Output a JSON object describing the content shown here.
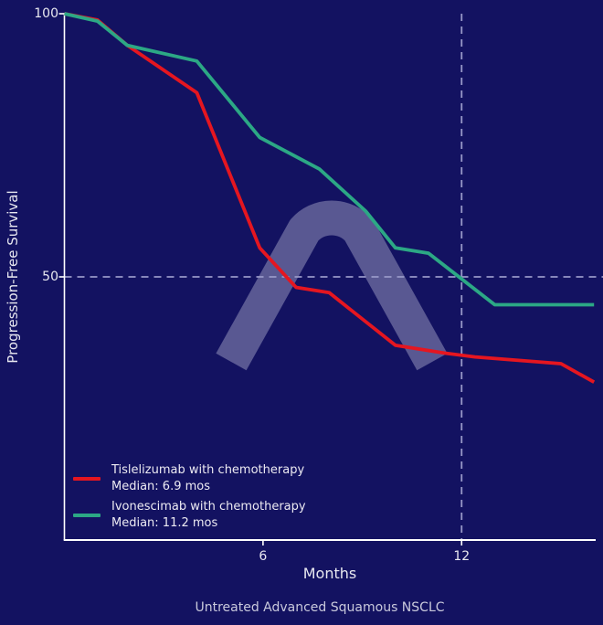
{
  "colors": {
    "background": "#131261",
    "axis": "#ffffff",
    "text": "#e8e8f0",
    "title_text": "#c9c9dc",
    "dashed_reference": "#9898c8",
    "watermark": "rgba(185,185,215,0.42)",
    "tislelizumab_red": "#e51620",
    "ivonescimab_green": "#2ca885"
  },
  "chart_data": {
    "type": "line",
    "title": "Untreated Advanced Squamous NSCLC",
    "xlabel": "Months",
    "ylabel": "Progression-Free Survival",
    "xlim": [
      0,
      16.05
    ],
    "ylim": [
      0,
      100
    ],
    "grid": false,
    "x_ticks": [
      {
        "value": 6,
        "label": "6"
      },
      {
        "value": 12,
        "label": "12"
      }
    ],
    "y_ticks": [
      {
        "value": 100,
        "label": "100"
      },
      {
        "value": 50,
        "label": "50"
      }
    ],
    "reference_lines": {
      "horizontal_at_percent": 50,
      "vertical_at_month": 12,
      "style": "dashed"
    },
    "legend_position": "lower-left",
    "series": [
      {
        "name": "Tislelizumab with chemotherapy",
        "median_label": "Median: 6.9 mos",
        "color": "#e51620",
        "points": [
          [
            0,
            100
          ],
          [
            1,
            98.8
          ],
          [
            1.9,
            94
          ],
          [
            4,
            85
          ],
          [
            5.9,
            55.5
          ],
          [
            7,
            48
          ],
          [
            8,
            47
          ],
          [
            10,
            37
          ],
          [
            11.5,
            35.5
          ],
          [
            12.4,
            34.8
          ],
          [
            15,
            33.5
          ],
          [
            16,
            30
          ]
        ]
      },
      {
        "name": "Ivonescimab with chemotherapy",
        "median_label": "Median: 11.2 mos",
        "color": "#2ca885",
        "points": [
          [
            0,
            100
          ],
          [
            1,
            98.6
          ],
          [
            1.9,
            94
          ],
          [
            4,
            91
          ],
          [
            5.9,
            76.5
          ],
          [
            7.7,
            70.5
          ],
          [
            9.1,
            62.5
          ],
          [
            10,
            55.5
          ],
          [
            11,
            54.5
          ],
          [
            13,
            44.7
          ],
          [
            16,
            44.7
          ]
        ]
      }
    ]
  }
}
